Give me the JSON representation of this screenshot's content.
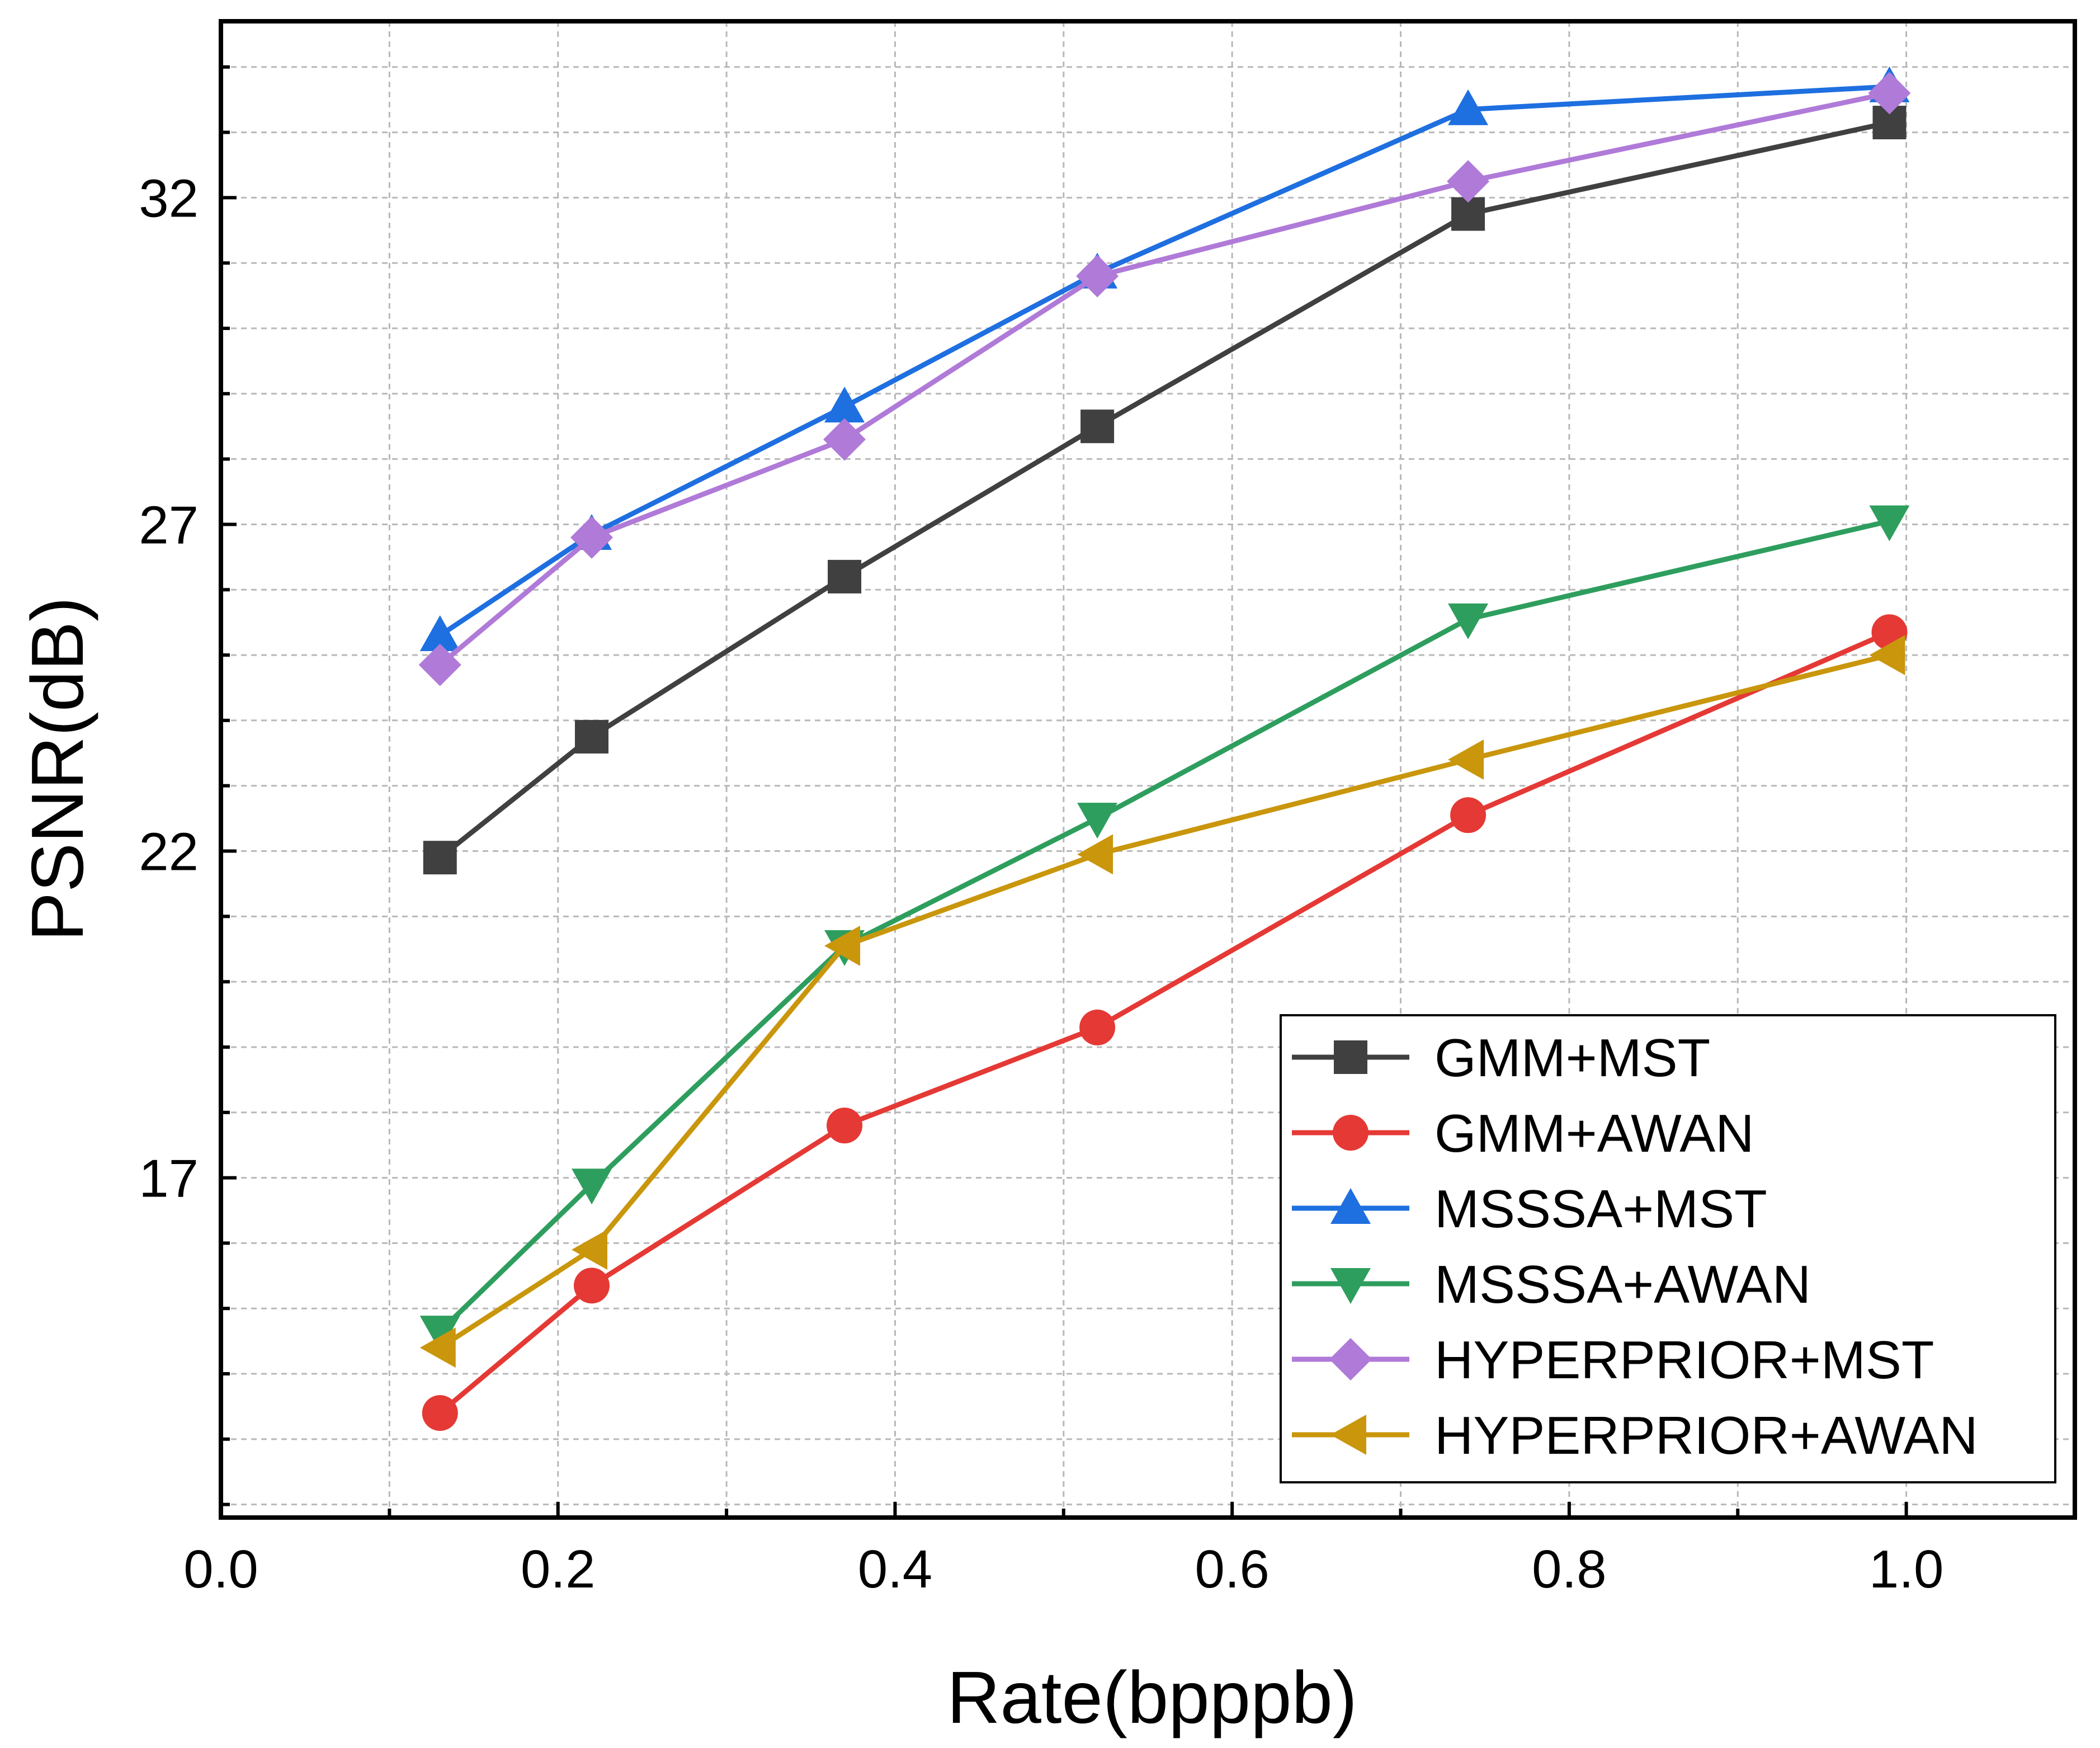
{
  "chart_data": {
    "type": "line",
    "title": "",
    "xlabel": "Rate(bpppb)",
    "ylabel": "PSNR(dB)",
    "xlim": [
      0.0,
      1.1
    ],
    "ylim": [
      11.8,
      34.7
    ],
    "xticks": [
      0.0,
      0.2,
      0.4,
      0.6,
      0.8,
      1.0
    ],
    "xtick_labels": [
      "0.0",
      "0.2",
      "0.4",
      "0.6",
      "0.8",
      "1.0"
    ],
    "yticks": [
      17,
      22,
      27,
      32
    ],
    "ytick_labels": [
      "17",
      "22",
      "27",
      "32"
    ],
    "grid": true,
    "legend_position": "bottom-right",
    "series": [
      {
        "name": "GMM+MST",
        "color": "#404040",
        "marker": "square",
        "x": [
          0.13,
          0.22,
          0.37,
          0.52,
          0.74,
          0.99
        ],
        "y": [
          21.9,
          23.75,
          26.2,
          28.5,
          31.75,
          33.15
        ]
      },
      {
        "name": "GMM+AWAN",
        "color": "#e53935",
        "marker": "circle",
        "x": [
          0.13,
          0.22,
          0.37,
          0.52,
          0.74,
          0.99
        ],
        "y": [
          13.4,
          15.35,
          17.8,
          19.3,
          22.55,
          25.35
        ]
      },
      {
        "name": "MSSSA+MST",
        "color": "#1e6fe0",
        "marker": "triangle-up",
        "x": [
          0.13,
          0.22,
          0.37,
          0.52,
          0.74,
          0.99
        ],
        "y": [
          25.3,
          26.85,
          28.8,
          30.85,
          33.35,
          33.7
        ]
      },
      {
        "name": "MSSSA+AWAN",
        "color": "#2e9e5e",
        "marker": "triangle-down",
        "x": [
          0.13,
          0.22,
          0.37,
          0.52,
          0.74,
          0.99
        ],
        "y": [
          14.65,
          16.9,
          20.55,
          22.5,
          25.55,
          27.05
        ]
      },
      {
        "name": "HYPERPRIOR+MST",
        "color": "#b07ad8",
        "marker": "diamond",
        "x": [
          0.13,
          0.22,
          0.37,
          0.52,
          0.74,
          0.99
        ],
        "y": [
          24.85,
          26.8,
          28.3,
          30.8,
          32.25,
          33.6
        ]
      },
      {
        "name": "HYPERPRIOR+AWAN",
        "color": "#c9960c",
        "marker": "triangle-left",
        "x": [
          0.13,
          0.22,
          0.37,
          0.52,
          0.74,
          0.99
        ],
        "y": [
          14.4,
          15.9,
          20.55,
          21.95,
          23.4,
          25.0
        ]
      }
    ]
  }
}
